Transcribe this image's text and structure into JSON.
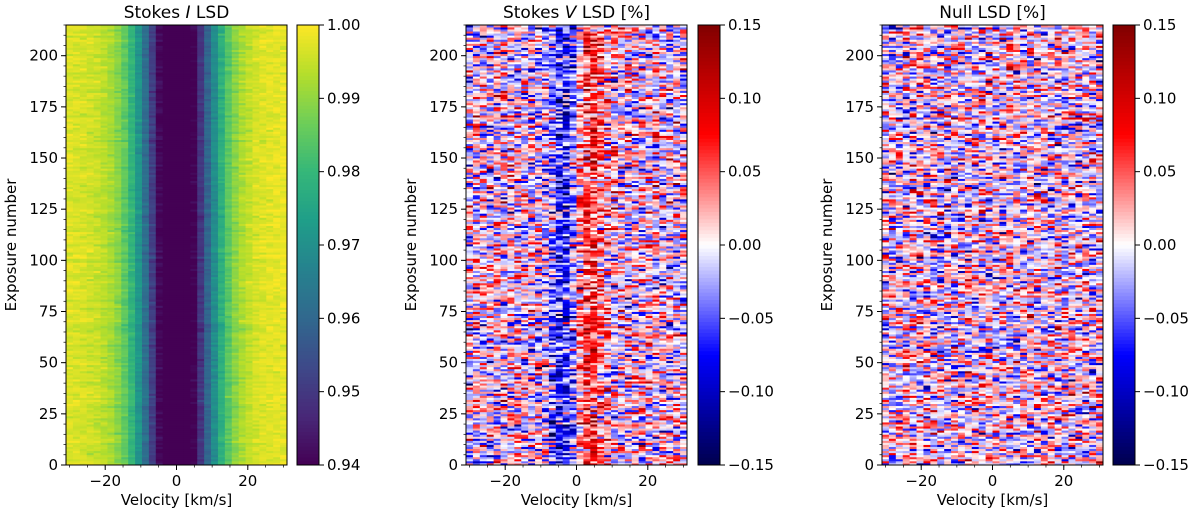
{
  "chart_data": [
    {
      "type": "heatmap",
      "title": "Stokes I LSD",
      "title_prefix": "Stokes ",
      "title_italic": "I",
      "title_suffix": " LSD",
      "xlabel": "Velocity [km/s]",
      "ylabel": "Exposure number",
      "xlim": [
        -31,
        31
      ],
      "ylim": [
        0,
        215
      ],
      "xticks": [
        -20,
        0,
        20
      ],
      "yticks": [
        0,
        25,
        50,
        75,
        100,
        125,
        150,
        175,
        200
      ],
      "colormap": "viridis",
      "colorbar": {
        "min": 0.94,
        "max": 1.0,
        "ticks": [
          "0.94",
          "0.95",
          "0.96",
          "0.97",
          "0.98",
          "0.99",
          "1.00"
        ]
      },
      "profile": {
        "center_kms": 0.5,
        "core_value": 0.94,
        "continuum_value": 1.0,
        "width_kms": 7.5
      },
      "velocity_bins": 32,
      "exposure_bins": 215
    },
    {
      "type": "heatmap",
      "title": "Stokes V LSD [%]",
      "title_prefix": "Stokes ",
      "title_italic": "V",
      "title_suffix": " LSD [%]",
      "xlabel": "Velocity [km/s]",
      "ylabel": "Exposure number",
      "xlim": [
        -31,
        31
      ],
      "ylim": [
        0,
        215
      ],
      "xticks": [
        -20,
        0,
        20
      ],
      "yticks": [
        0,
        25,
        50,
        75,
        100,
        125,
        150,
        175,
        200
      ],
      "colormap": "seismic",
      "colorbar": {
        "min": -0.15,
        "max": 0.15,
        "ticks": [
          "−0.15",
          "−0.10",
          "−0.05",
          "0.00",
          "0.05",
          "0.10",
          "0.15"
        ]
      },
      "signal": {
        "negative_lobe_kms": -3.5,
        "positive_lobe_kms": 4.0,
        "amplitude": 0.07
      },
      "velocity_bins": 32,
      "exposure_bins": 215
    },
    {
      "type": "heatmap",
      "title": "Null LSD [%]",
      "title_prefix": "Null LSD [%]",
      "title_italic": "",
      "title_suffix": "",
      "xlabel": "Velocity [km/s]",
      "ylabel": "Exposure number",
      "xlim": [
        -31,
        31
      ],
      "ylim": [
        0,
        215
      ],
      "xticks": [
        -20,
        0,
        20
      ],
      "yticks": [
        0,
        25,
        50,
        75,
        100,
        125,
        150,
        175,
        200
      ],
      "colormap": "seismic",
      "colorbar": {
        "min": -0.15,
        "max": 0.15,
        "ticks": [
          "−0.15",
          "−0.10",
          "−0.05",
          "0.00",
          "0.05",
          "0.10",
          "0.15"
        ]
      },
      "velocity_bins": 32,
      "exposure_bins": 215
    }
  ]
}
